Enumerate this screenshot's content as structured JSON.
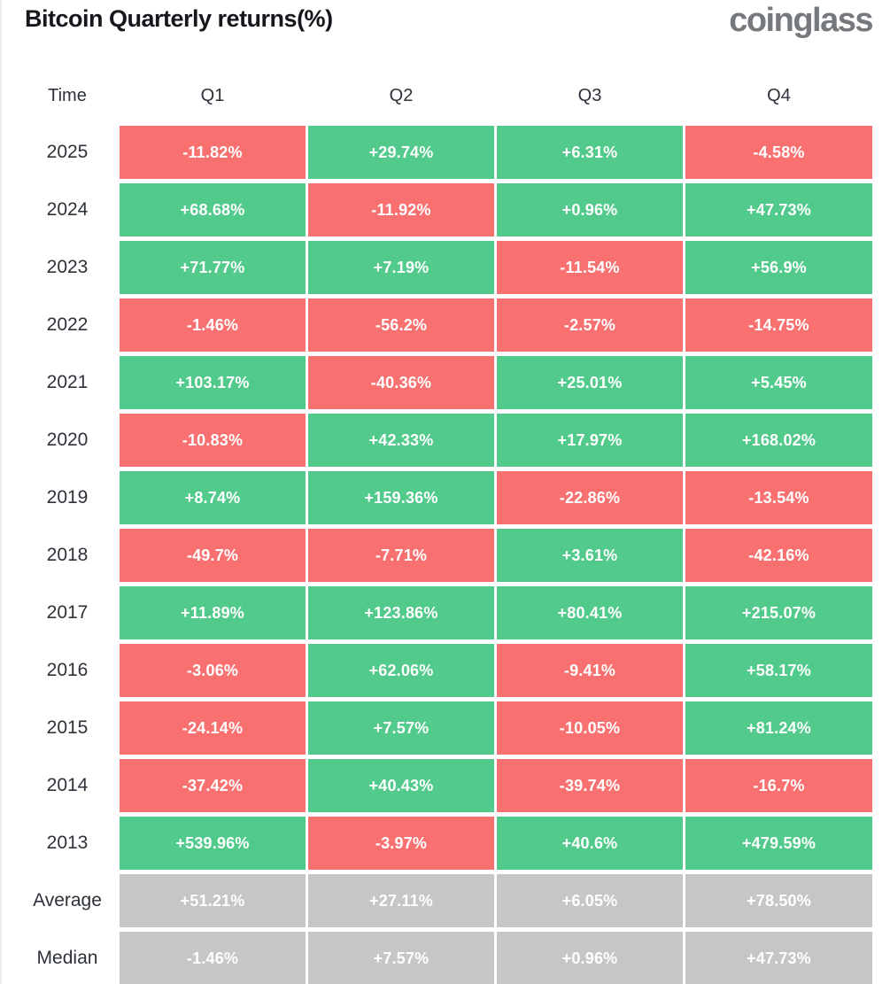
{
  "header": {
    "title": "Bitcoin Quarterly returns(%)",
    "logo_text": "coinglass"
  },
  "colors": {
    "positive": "#52ca8b",
    "negative": "#f87170",
    "neutral": "#c6c6c6",
    "text_dark": "#2d313a",
    "title": "#15171c",
    "logo": "#75787d"
  },
  "chart_data": {
    "type": "table",
    "title": "Bitcoin Quarterly returns(%)",
    "columns": [
      "Time",
      "Q1",
      "Q2",
      "Q3",
      "Q4"
    ],
    "rows": [
      {
        "label": "2025",
        "type": "year",
        "values": [
          -11.82,
          29.74,
          6.31,
          -4.58
        ],
        "display": [
          "-11.82%",
          "+29.74%",
          "+6.31%",
          "-4.58%"
        ]
      },
      {
        "label": "2024",
        "type": "year",
        "values": [
          68.68,
          -11.92,
          0.96,
          47.73
        ],
        "display": [
          "+68.68%",
          "-11.92%",
          "+0.96%",
          "+47.73%"
        ]
      },
      {
        "label": "2023",
        "type": "year",
        "values": [
          71.77,
          7.19,
          -11.54,
          56.9
        ],
        "display": [
          "+71.77%",
          "+7.19%",
          "-11.54%",
          "+56.9%"
        ]
      },
      {
        "label": "2022",
        "type": "year",
        "values": [
          -1.46,
          -56.2,
          -2.57,
          -14.75
        ],
        "display": [
          "-1.46%",
          "-56.2%",
          "-2.57%",
          "-14.75%"
        ]
      },
      {
        "label": "2021",
        "type": "year",
        "values": [
          103.17,
          -40.36,
          25.01,
          5.45
        ],
        "display": [
          "+103.17%",
          "-40.36%",
          "+25.01%",
          "+5.45%"
        ]
      },
      {
        "label": "2020",
        "type": "year",
        "values": [
          -10.83,
          42.33,
          17.97,
          168.02
        ],
        "display": [
          "-10.83%",
          "+42.33%",
          "+17.97%",
          "+168.02%"
        ]
      },
      {
        "label": "2019",
        "type": "year",
        "values": [
          8.74,
          159.36,
          -22.86,
          -13.54
        ],
        "display": [
          "+8.74%",
          "+159.36%",
          "-22.86%",
          "-13.54%"
        ]
      },
      {
        "label": "2018",
        "type": "year",
        "values": [
          -49.7,
          -7.71,
          3.61,
          -42.16
        ],
        "display": [
          "-49.7%",
          "-7.71%",
          "+3.61%",
          "-42.16%"
        ]
      },
      {
        "label": "2017",
        "type": "year",
        "values": [
          11.89,
          123.86,
          80.41,
          215.07
        ],
        "display": [
          "+11.89%",
          "+123.86%",
          "+80.41%",
          "+215.07%"
        ]
      },
      {
        "label": "2016",
        "type": "year",
        "values": [
          -3.06,
          62.06,
          -9.41,
          58.17
        ],
        "display": [
          "-3.06%",
          "+62.06%",
          "-9.41%",
          "+58.17%"
        ]
      },
      {
        "label": "2015",
        "type": "year",
        "values": [
          -24.14,
          7.57,
          -10.05,
          81.24
        ],
        "display": [
          "-24.14%",
          "+7.57%",
          "-10.05%",
          "+81.24%"
        ]
      },
      {
        "label": "2014",
        "type": "year",
        "values": [
          -37.42,
          40.43,
          -39.74,
          -16.7
        ],
        "display": [
          "-37.42%",
          "+40.43%",
          "-39.74%",
          "-16.7%"
        ]
      },
      {
        "label": "2013",
        "type": "year",
        "values": [
          539.96,
          -3.97,
          40.6,
          479.59
        ],
        "display": [
          "+539.96%",
          "-3.97%",
          "+40.6%",
          "+479.59%"
        ]
      },
      {
        "label": "Average",
        "type": "summary",
        "values": [
          51.21,
          27.11,
          6.05,
          78.5
        ],
        "display": [
          "+51.21%",
          "+27.11%",
          "+6.05%",
          "+78.50%"
        ]
      },
      {
        "label": "Median",
        "type": "summary",
        "values": [
          -1.46,
          7.57,
          0.96,
          47.73
        ],
        "display": [
          "-1.46%",
          "+7.57%",
          "+0.96%",
          "+47.73%"
        ]
      }
    ]
  }
}
